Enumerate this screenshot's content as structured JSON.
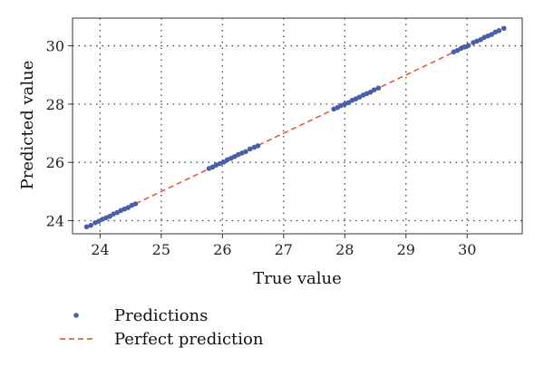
{
  "chart_data": {
    "type": "scatter",
    "title": "",
    "xlabel": "True value",
    "ylabel": "Predicted value",
    "xlim": [
      23.55,
      30.9
    ],
    "ylim": [
      23.55,
      30.95
    ],
    "xticks": [
      24,
      25,
      26,
      27,
      28,
      29,
      30
    ],
    "yticks": [
      24,
      26,
      28,
      30
    ],
    "grid": true,
    "legend_position": "below",
    "series": [
      {
        "name": "Predictions",
        "kind": "scatter",
        "color": "#4a5fa8",
        "x": [
          23.78,
          23.85,
          23.92,
          23.98,
          24.04,
          24.1,
          24.16,
          24.22,
          24.28,
          24.34,
          24.4,
          24.46,
          24.52,
          24.58,
          25.78,
          25.84,
          25.9,
          25.96,
          26.02,
          26.08,
          26.14,
          26.2,
          26.26,
          26.32,
          26.38,
          26.45,
          26.52,
          26.58,
          27.82,
          27.88,
          27.94,
          28.0,
          28.06,
          28.12,
          28.18,
          28.24,
          28.3,
          28.36,
          28.42,
          28.48,
          28.55,
          29.78,
          29.84,
          29.9,
          29.96,
          30.02,
          30.1,
          30.16,
          30.22,
          30.28,
          30.34,
          30.4,
          30.46,
          30.52,
          30.6
        ],
        "y": [
          23.79,
          23.84,
          23.93,
          23.98,
          24.05,
          24.1,
          24.15,
          24.23,
          24.28,
          24.35,
          24.4,
          24.45,
          24.53,
          24.58,
          25.79,
          25.84,
          25.91,
          25.96,
          26.01,
          26.09,
          26.14,
          26.2,
          26.27,
          26.32,
          26.37,
          26.46,
          26.52,
          26.57,
          27.83,
          27.88,
          27.95,
          28.0,
          28.05,
          28.13,
          28.18,
          28.24,
          28.31,
          28.36,
          28.41,
          28.49,
          28.55,
          29.79,
          29.84,
          29.91,
          29.96,
          30.01,
          30.11,
          30.16,
          30.21,
          30.29,
          30.34,
          30.39,
          30.47,
          30.52,
          30.6
        ]
      },
      {
        "name": "Perfect prediction",
        "kind": "line",
        "style": "dashed",
        "color": "#e8432a",
        "x": [
          23.78,
          30.6
        ],
        "y": [
          23.78,
          30.6
        ]
      }
    ]
  }
}
